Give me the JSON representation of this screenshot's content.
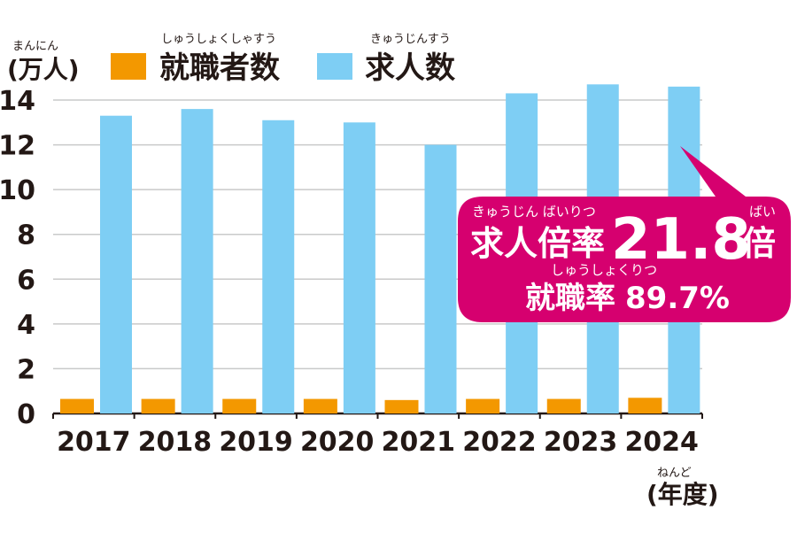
{
  "chart_data": {
    "type": "bar",
    "categories": [
      "2017",
      "2018",
      "2019",
      "2020",
      "2021",
      "2022",
      "2023",
      "2024"
    ],
    "series": [
      {
        "name": "就職者数",
        "name_ruby": "しゅうしょくしゃすう",
        "color": "#f39800",
        "values": [
          0.65,
          0.65,
          0.65,
          0.65,
          0.6,
          0.65,
          0.65,
          0.7
        ]
      },
      {
        "name": "求人数",
        "name_ruby": "きゅうじんすう",
        "color": "#7ecef4",
        "values": [
          13.3,
          13.6,
          13.1,
          13.0,
          12.0,
          14.3,
          14.7,
          14.6
        ]
      }
    ],
    "ylabel": "(万人)",
    "ylabel_ruby": "まんにん",
    "xlabel": "(年度)",
    "xlabel_ruby": "ねんど",
    "yticks": [
      "0",
      "2",
      "4",
      "6",
      "8",
      "10",
      "12",
      "14"
    ],
    "ylim": [
      0,
      14
    ],
    "grid": true,
    "legend_position": "top"
  },
  "callout": {
    "color": "#d6006f",
    "ratio_label": "求人倍率",
    "ratio_label_ruby": "きゅうじん ばいりつ",
    "ratio_value": "21.8",
    "ratio_unit": "倍",
    "ratio_unit_ruby": "ばい",
    "employment_label": "就職率",
    "employment_label_ruby": "しゅうしょくりつ",
    "employment_value": "89.7%"
  }
}
